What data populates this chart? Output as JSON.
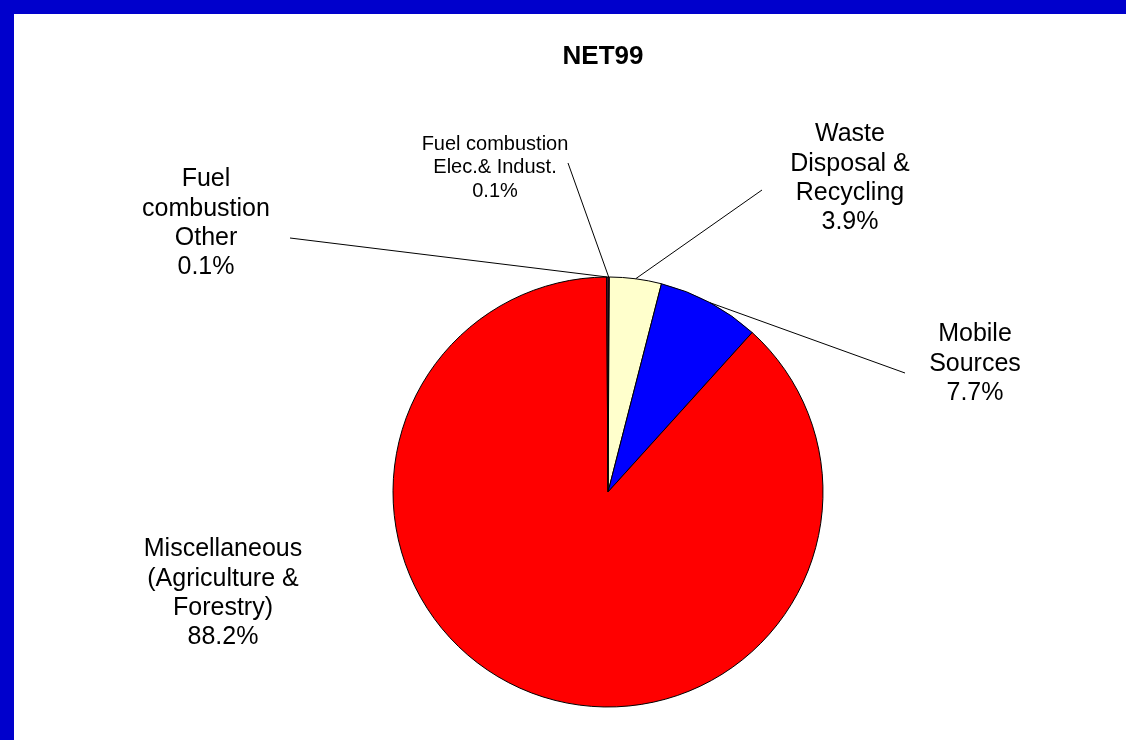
{
  "chart_data": {
    "type": "pie",
    "title": "NET99",
    "categories": [
      "Fuel combustion Elec.& Indust.",
      "Waste Disposal & Recycling",
      "Mobile Sources",
      "Miscellaneous (Agriculture & Forestry)",
      "Fuel combustion Other"
    ],
    "values": [
      0.1,
      3.9,
      7.7,
      88.2,
      0.1
    ],
    "value_labels": [
      "0.1%",
      "3.9%",
      "7.7%",
      "88.2%",
      "0.1%"
    ],
    "colors": [
      "#993366",
      "#ffffcc",
      "#0000ff",
      "#ff0000",
      "#993366"
    ]
  }
}
